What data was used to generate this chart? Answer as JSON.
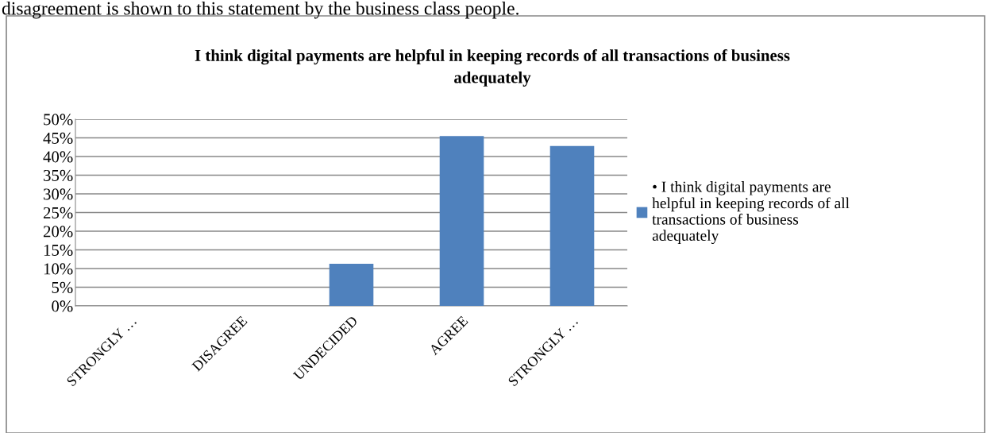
{
  "chart_data": {
    "type": "bar",
    "title": "I think digital payments are helpful in keeping records of all transactions of business adequately",
    "categories": [
      "STRONGLY …",
      "DISAGREE",
      "UNDECIDED",
      "AGREE",
      "STRONGLY …"
    ],
    "series": [
      {
        "name": "• I think digital payments are helpful in keeping records of all transactions of business adequately",
        "color": "#4f81bd",
        "values": [
          0,
          0,
          11.3,
          45.5,
          42.8
        ]
      }
    ],
    "ylim": [
      0,
      50
    ],
    "yticks": [
      {
        "value": 0,
        "label": "0%"
      },
      {
        "value": 5,
        "label": "5%"
      },
      {
        "value": 10,
        "label": "10%"
      },
      {
        "value": 15,
        "label": "15%"
      },
      {
        "value": 20,
        "label": "20%"
      },
      {
        "value": 25,
        "label": "25%"
      },
      {
        "value": 30,
        "label": "30%"
      },
      {
        "value": 35,
        "label": "35%"
      },
      {
        "value": 40,
        "label": "40%"
      },
      {
        "value": 45,
        "label": "45%"
      },
      {
        "value": 50,
        "label": "50%"
      }
    ],
    "grid": "y",
    "legend": "right",
    "annotations": [
      "disagreement is shown to this statement by the business class people."
    ]
  }
}
